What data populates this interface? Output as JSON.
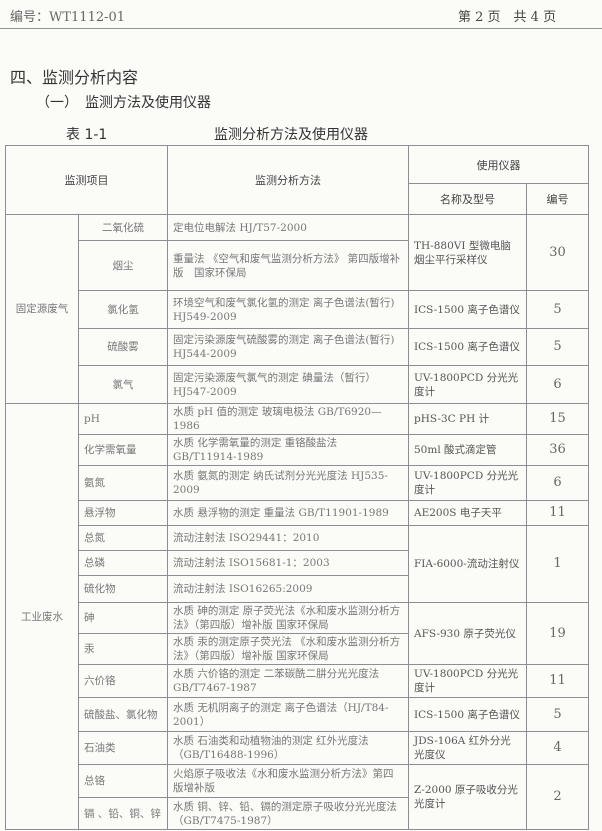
{
  "header": {
    "doc_no": "编号：WT1112-01",
    "page": "第 2 页　共 4 页"
  },
  "section_title": "四、监测分析内容",
  "subsection_title": "（一）　监测方法及使用仪器",
  "table_caption": {
    "number": "表 1-1",
    "title": "监测分析方法及使用仪器"
  },
  "table": {
    "headers": {
      "item": "监测项目",
      "method": "监测分析方法",
      "instrument": "使用仪器",
      "name_model": "名称及型号",
      "count": "编号"
    },
    "groups": [
      {
        "category": "固定源废气",
        "rows": [
          {
            "item": "二氧化硫",
            "method": "定电位电解法 HJ/T57-2000",
            "instrument": "TH-880VI 型微电脑烟尘平行采样仪",
            "count": "30"
          },
          {
            "item": "烟尘",
            "method": "重量法 《空气和废气监测分析方法》 第四版增补版　国家环保局"
          },
          {
            "item": "氯化氢",
            "method": "环境空气和废气氯化氢的测定 离子色谱法(暂行) HJ549-2009",
            "instrument": "ICS-1500 离子色谱仪",
            "count": "5"
          },
          {
            "item": "硫酸雾",
            "method": "固定污染源废气硫酸雾的测定 离子色谱法(暂行) HJ544-2009",
            "instrument": "ICS-1500 离子色谱仪",
            "count": "5"
          },
          {
            "item": "氯气",
            "method": "固定污染源废气氯气的测定 碘量法（暂行） HJ547-2009",
            "instrument": "UV-1800PCD 分光光度计",
            "count": "6"
          }
        ]
      },
      {
        "category": "工业废水",
        "rows": [
          {
            "item": "pH",
            "method": "水质 pH 值的测定 玻璃电极法 GB/T6920—1986",
            "instrument": "pHS-3C PH 计",
            "count": "15"
          },
          {
            "item": "化学需氧量",
            "method": "水质 化学需氧量的测定 重铬酸盐法 GB/T11914-1989",
            "instrument": "50ml 酸式滴定管",
            "count": "36"
          },
          {
            "item": "氨氮",
            "method": "水质 氨氮的测定 纳氏试剂分光光度法 HJ535-2009",
            "instrument": "UV-1800PCD 分光光度计",
            "count": "6"
          },
          {
            "item": "悬浮物",
            "method": "水质 悬浮物的测定 重量法 GB/T11901-1989",
            "instrument": "AE200S 电子天平",
            "count": "11"
          },
          {
            "item": "总氮",
            "method": "流动注射法 ISO29441：2010",
            "instrument": "FIA-6000-流动注射仪",
            "count": "1"
          },
          {
            "item": "总磷",
            "method": "流动注射法 ISO15681-1：2003"
          },
          {
            "item": "硫化物",
            "method": "流动注射法 ISO16265:2009"
          },
          {
            "item": "砷",
            "method": "水质 砷的测定 原子荧光法《水和废水监测分析方法》（第四版）增补版 国家环保局",
            "instrument": "AFS-930 原子荧光仪",
            "count": "19"
          },
          {
            "item": "汞",
            "method": "水质 汞的测定原子荧光法 《水和废水监测分析方法》（第四版）增补版 国家环保局"
          },
          {
            "item": "六价铬",
            "method": "水质 六价铬的测定 二苯碳酰二肼分光光度法 GB/T7467-1987",
            "instrument": "UV-1800PCD 分光光度计",
            "count": "11"
          },
          {
            "item": "硫酸盐、氯化物",
            "method": "水质 无机阴离子的测定 离子色谱法（HJ/T84-2001）",
            "instrument": "ICS-1500 离子色谱仪",
            "count": "5"
          },
          {
            "item": "石油类",
            "method": "水质 石油类和动植物油的测定 红外光度法（GB/T16488-1996）",
            "instrument": "JDS-106A 红外分光光度仪",
            "count": "4"
          },
          {
            "item": "总铬",
            "method": "火焰原子吸收法《水和废水监测分析方法》第四版增补版",
            "instrument": "Z-2000 原子吸收分光光度计",
            "count": "2"
          },
          {
            "item": "镉 、铅、铜、锌",
            "method": "水质 铜、锌、铅、镉的测定原子吸收分光光度法（GB/T7475-1987）"
          }
        ]
      }
    ]
  }
}
